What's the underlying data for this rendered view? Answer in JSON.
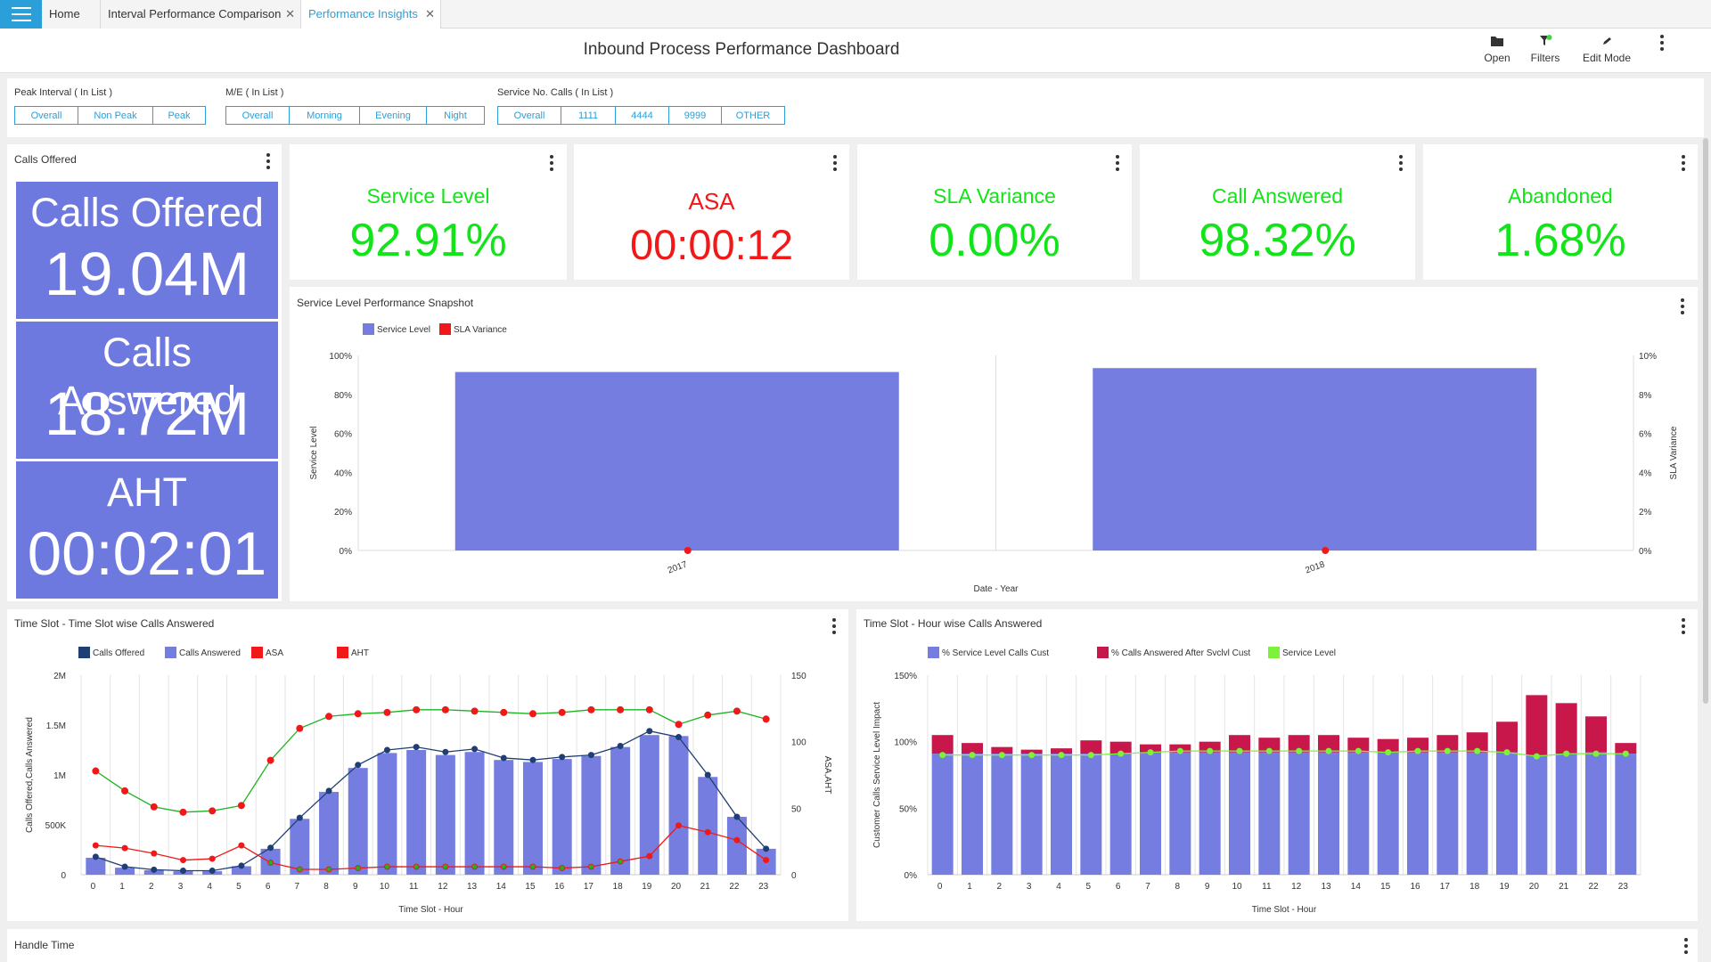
{
  "tabs": [
    {
      "label": "Home"
    },
    {
      "label": "Interval Performance Comparison"
    },
    {
      "label": "Performance Insights"
    }
  ],
  "header": {
    "title": "Inbound Process Performance Dashboard",
    "tools": [
      {
        "label": "Open",
        "icon": "folder-icon"
      },
      {
        "label": "Filters",
        "icon": "filter-icon"
      },
      {
        "label": "Edit Mode",
        "icon": "edit-icon"
      }
    ]
  },
  "filters": [
    {
      "label": "Peak Interval ( In List )",
      "options": [
        "Overall",
        "Non Peak",
        "Peak"
      ]
    },
    {
      "label": "M/E ( In List )",
      "options": [
        "Overall",
        "Morning",
        "Evening",
        "Night"
      ]
    },
    {
      "label": "Service No. Calls ( In List )",
      "options": [
        "Overall",
        "1111",
        "4444",
        "9999",
        "OTHER"
      ]
    }
  ],
  "calls_panel": {
    "title": "Calls Offered",
    "tiles": [
      {
        "label": "Calls Offered",
        "value": "19.04M"
      },
      {
        "label": "Calls Answered",
        "value": "18.72M"
      },
      {
        "label": "AHT",
        "value": "00:02:01"
      }
    ]
  },
  "kpis": [
    {
      "label": "Service Level",
      "value": "92.91%",
      "color": "#11e418"
    },
    {
      "label": "ASA",
      "value": "00:00:12",
      "color": "#f01818"
    },
    {
      "label": "SLA Variance",
      "value": "0.00%",
      "color": "#11e418"
    },
    {
      "label": "Call Answered",
      "value": "98.32%",
      "color": "#11e418"
    },
    {
      "label": "Abandoned",
      "value": "1.68%",
      "color": "#11e418"
    }
  ],
  "colors": {
    "purple": "#757ee0",
    "navy": "#1f3e73",
    "red": "#f01818",
    "crimson": "#c8174a",
    "green": "#1db323",
    "lime": "#7cf23a"
  },
  "chart_data": [
    {
      "type": "bar",
      "title": "Service Level Performance Snapshot",
      "categories": [
        "2017",
        "2018"
      ],
      "series": [
        {
          "name": "Service Level",
          "values": [
            91.5,
            93.5
          ],
          "axis": "left"
        },
        {
          "name": "SLA Variance",
          "values": [
            0,
            0
          ],
          "axis": "right",
          "style": "point"
        }
      ],
      "xlabel": "Date - Year",
      "ylabel": "Service Level",
      "y2label": "SLA Variance",
      "ylim": [
        0,
        100
      ],
      "y2lim": [
        0,
        10
      ],
      "yticks": [
        "0%",
        "20%",
        "40%",
        "60%",
        "80%",
        "100%"
      ],
      "y2ticks": [
        "0%",
        "2%",
        "4%",
        "6%",
        "8%",
        "10%"
      ],
      "legend": "top-left"
    },
    {
      "type": "bar",
      "title": "Time Slot - Time Slot wise Calls Answered",
      "categories": [
        "0",
        "1",
        "2",
        "3",
        "4",
        "5",
        "6",
        "7",
        "8",
        "9",
        "10",
        "11",
        "12",
        "13",
        "14",
        "15",
        "16",
        "17",
        "18",
        "19",
        "20",
        "21",
        "22",
        "23"
      ],
      "series": [
        {
          "name": "Calls Offered",
          "style": "line",
          "axis": "left",
          "values": [
            180000,
            80000,
            50000,
            40000,
            40000,
            90000,
            270000,
            570000,
            840000,
            1100000,
            1250000,
            1280000,
            1230000,
            1260000,
            1170000,
            1150000,
            1180000,
            1200000,
            1290000,
            1440000,
            1380000,
            1000000,
            580000,
            260000
          ]
        },
        {
          "name": "Calls Answered",
          "style": "bar",
          "axis": "left",
          "values": [
            170000,
            70000,
            45000,
            35000,
            35000,
            85000,
            260000,
            560000,
            830000,
            1070000,
            1220000,
            1250000,
            1200000,
            1230000,
            1150000,
            1130000,
            1160000,
            1190000,
            1280000,
            1400000,
            1390000,
            980000,
            580000,
            260000
          ]
        },
        {
          "name": "ASA",
          "style": "line",
          "axis": "right",
          "values": [
            22,
            20,
            16,
            11,
            12,
            22,
            9,
            4,
            4,
            5,
            6,
            6,
            6,
            6,
            6,
            6,
            5,
            6,
            10,
            14,
            37,
            32,
            26,
            11
          ]
        },
        {
          "name": "AHT",
          "style": "line",
          "axis": "right",
          "values": [
            78,
            63,
            51,
            47,
            48,
            52,
            86,
            110,
            119,
            121,
            122,
            124,
            124,
            123,
            122,
            121,
            122,
            124,
            124,
            124,
            113,
            120,
            123,
            117
          ]
        }
      ],
      "xlabel": "Time Slot - Hour",
      "ylabel": "Calls Offered,Calls Answered",
      "y2label": "ASA,AHT",
      "ylim": [
        0,
        2000000
      ],
      "y2lim": [
        0,
        150
      ],
      "yticks": [
        "0",
        "500K",
        "1M",
        "1.5M",
        "2M"
      ],
      "y2ticks": [
        "0",
        "50",
        "100",
        "150"
      ],
      "legend": "top-left"
    },
    {
      "type": "bar",
      "title": "Time Slot - Hour wise Calls Answered",
      "categories": [
        "0",
        "1",
        "2",
        "3",
        "4",
        "5",
        "6",
        "7",
        "8",
        "9",
        "10",
        "11",
        "12",
        "13",
        "14",
        "15",
        "16",
        "17",
        "18",
        "19",
        "20",
        "21",
        "22",
        "23"
      ],
      "series": [
        {
          "name": "% Service Level Calls Cust",
          "style": "stacked-bar",
          "values": [
            91,
            91,
            91,
            91,
            91,
            91,
            91,
            92,
            92,
            92,
            92,
            92,
            92,
            92,
            92,
            92,
            92,
            92,
            92,
            92,
            90,
            91,
            92,
            91
          ]
        },
        {
          "name": "% Calls Answered After Svclvl Cust",
          "style": "stacked-bar",
          "values": [
            14,
            8,
            5,
            3,
            4,
            10,
            9,
            6,
            6,
            8,
            13,
            11,
            13,
            13,
            11,
            10,
            11,
            13,
            15,
            23,
            45,
            38,
            27,
            8
          ]
        },
        {
          "name": "Service Level",
          "style": "point",
          "values": [
            90,
            90,
            90,
            90,
            90,
            90,
            91,
            92,
            93,
            93,
            93,
            93,
            93,
            93,
            93,
            92,
            93,
            93,
            93,
            92,
            89,
            91,
            91,
            91
          ]
        }
      ],
      "xlabel": "Time Slot - Hour",
      "ylabel": "Customer Calls Service Level Impact",
      "ylim": [
        0,
        150
      ],
      "yticks": [
        "0%",
        "50%",
        "100%",
        "150%"
      ],
      "legend": "top-left"
    }
  ],
  "handle_time": {
    "title": "Handle Time"
  }
}
